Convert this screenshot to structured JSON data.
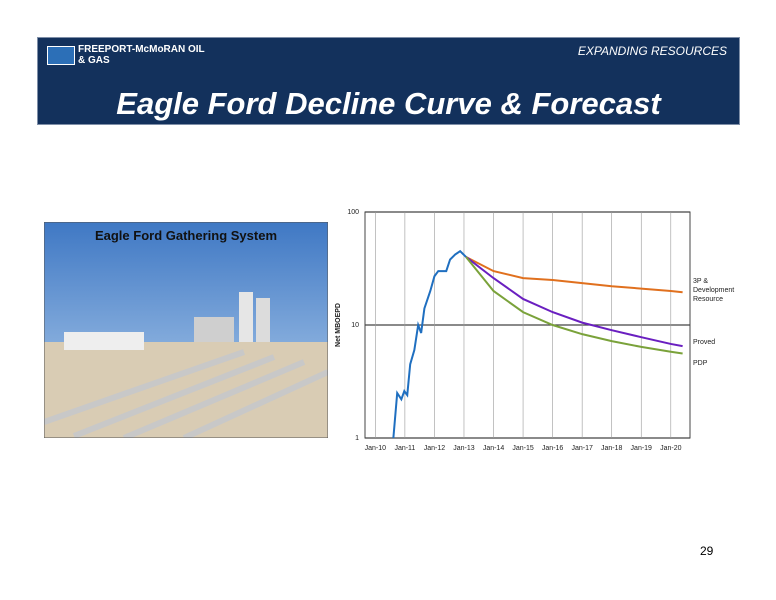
{
  "header": {
    "logo": "FREEPORT-McMoRAN OIL & GAS",
    "section": "EXPANDING RESOURCES",
    "title": "Eagle Ford Decline Curve & Forecast"
  },
  "photo": {
    "caption": "Eagle Ford Gathering System"
  },
  "page_number": "29",
  "chart_data": {
    "type": "line",
    "y_label": "Net MBOEPD",
    "log_scale": true,
    "grid": true,
    "xlim": [
      2009.65,
      2020.65
    ],
    "xticks": [
      {
        "value": 2010,
        "label": "Jan-10"
      },
      {
        "value": 2011,
        "label": "Jan-11"
      },
      {
        "value": 2012,
        "label": "Jan-12"
      },
      {
        "value": 2013,
        "label": "Jan-13"
      },
      {
        "value": 2014,
        "label": "Jan-14"
      },
      {
        "value": 2015,
        "label": "Jan-15"
      },
      {
        "value": 2016,
        "label": "Jan-16"
      },
      {
        "value": 2017,
        "label": "Jan-17"
      },
      {
        "value": 2018,
        "label": "Jan-18"
      },
      {
        "value": 2019,
        "label": "Jan-19"
      },
      {
        "value": 2020,
        "label": "Jan-20"
      }
    ],
    "ylim": [
      1,
      100
    ],
    "yticks": [
      1,
      10,
      100
    ],
    "series": [
      {
        "color": "#1f6fc0",
        "x": [
          2010.61,
          2010.74,
          2010.88,
          2010.98,
          2011.08,
          2011.18,
          2011.32,
          2011.45,
          2011.55,
          2011.66,
          2011.86,
          2012.0,
          2012.13,
          2012.4,
          2012.53,
          2012.7,
          2012.87,
          2013.07
        ],
        "values": [
          1,
          2.5,
          2.2,
          2.6,
          2.4,
          4.5,
          6,
          10,
          8.5,
          14,
          20,
          27,
          30,
          30,
          38,
          42,
          45,
          40
        ]
      },
      {
        "name": "3P & Development Resource",
        "color": "#e0701e",
        "x": [
          2013.07,
          2014,
          2015,
          2016,
          2017,
          2018,
          2019,
          2020,
          2020.4
        ],
        "values": [
          40,
          30,
          26,
          25,
          23.5,
          22,
          21,
          20,
          19.5
        ]
      },
      {
        "name": "Proved",
        "color": "#6a1fc0",
        "x": [
          2013.07,
          2014,
          2015,
          2016,
          2017,
          2018,
          2019,
          2020,
          2020.4
        ],
        "values": [
          40,
          26,
          17,
          13,
          10.5,
          9,
          7.8,
          6.8,
          6.5
        ]
      },
      {
        "name": "PDP",
        "color": "#7aa23a",
        "x": [
          2013.07,
          2014,
          2015,
          2016,
          2017,
          2018,
          2019,
          2020,
          2020.4
        ],
        "values": [
          40,
          20,
          13,
          10,
          8.3,
          7.2,
          6.4,
          5.8,
          5.6
        ]
      }
    ]
  }
}
